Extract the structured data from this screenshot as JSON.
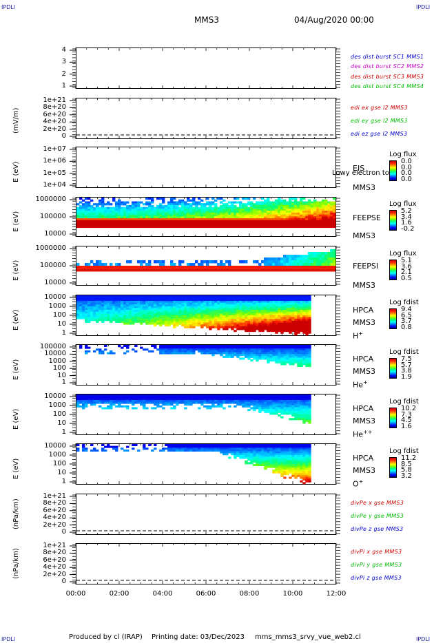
{
  "corners": {
    "label": "IPDLI"
  },
  "header": {
    "spacecraft": "MMS3",
    "datetime": "04/Aug/2020 00:00"
  },
  "footer": {
    "producer": "Produced by cl (IRAP)",
    "printing_date": "Printing date: 03/Dec/2023",
    "filename": "mms_mms3_srvy_vue_web2.cl"
  },
  "chart_data": [
    {
      "type": "line",
      "id": "des-dist",
      "ylabel": "",
      "yticks": [
        "4",
        "3",
        "2",
        "1"
      ],
      "legend": [
        {
          "text": "des dist burst SC1 MMS1",
          "color": "#0000cc"
        },
        {
          "text": "des dist burst SC2 MMS2",
          "color": "#cc00cc"
        },
        {
          "text": "des dist burst SC3 MMS3",
          "color": "#cc0000"
        },
        {
          "text": "des dist burst SC4 MMS4",
          "color": "#00bb00"
        }
      ],
      "series": []
    },
    {
      "type": "line",
      "id": "edi-e",
      "ylabel": "(mV/m)",
      "yticks": [
        "1e+21",
        "8e+20",
        "6e+20",
        "4e+20",
        "2e+20",
        "0"
      ],
      "legend": [
        {
          "text": "edi ex gse l2 MMS3",
          "color": "#cc0000"
        },
        {
          "text": "edi ey gse l2 MMS3",
          "color": "#00bb00"
        },
        {
          "text": "edi ez gse l2 MMS3",
          "color": "#0000cc"
        }
      ],
      "zero_line": true,
      "series": []
    },
    {
      "type": "heatmap",
      "id": "eis",
      "ylabel": "E (eV)",
      "yticks": [
        "1e+07",
        "1e+06",
        "1e+05",
        "1e+04"
      ],
      "labels": [
        "EIS",
        "MMS3"
      ],
      "overlay_text": "Lowy electron to",
      "cb_title": "Log flux",
      "cb_ticks": [
        "0.0",
        "0.0",
        "0.0",
        "0.0"
      ]
    },
    {
      "type": "heatmap",
      "id": "feepse",
      "ylabel": "E (eV)",
      "yticks": [
        "1000000",
        "100000",
        "10000"
      ],
      "labels": [
        "FEEPSE",
        "MMS3"
      ],
      "cb_title": "Log flux",
      "cb_ticks": [
        "5.2",
        "3.4",
        "1.6",
        "-0.2"
      ]
    },
    {
      "type": "heatmap",
      "id": "feepsi",
      "ylabel": "E (eV)",
      "yticks": [
        "1000000",
        "100000",
        "10000"
      ],
      "labels": [
        "FEEPSI",
        "MMS3"
      ],
      "cb_title": "Log flux",
      "cb_ticks": [
        "5.1",
        "3.6",
        "2.1",
        "0.5"
      ]
    },
    {
      "type": "heatmap",
      "id": "hpca-h",
      "ylabel": "E (eV)",
      "yticks": [
        "10000",
        "1000",
        "100",
        "10",
        "1"
      ],
      "labels": [
        "HPCA",
        "MMS3",
        "H+"
      ],
      "cb_title": "Log fdist",
      "cb_ticks": [
        "9.4",
        "6.5",
        "3.7",
        "0.8"
      ]
    },
    {
      "type": "heatmap",
      "id": "hpca-he",
      "ylabel": "E (eV)",
      "yticks": [
        "100000",
        "10000",
        "1000",
        "100",
        "10",
        "1"
      ],
      "labels": [
        "HPCA",
        "MMS3",
        "He+"
      ],
      "cb_title": "Log fdist",
      "cb_ticks": [
        "7.5",
        "5.7",
        "3.8",
        "1.9"
      ]
    },
    {
      "type": "heatmap",
      "id": "hpca-hepp",
      "ylabel": "E (eV)",
      "yticks": [
        "10000",
        "1000",
        "100",
        "10",
        "1"
      ],
      "labels": [
        "HPCA",
        "MMS3",
        "He++"
      ],
      "cb_title": "Log fdist",
      "cb_ticks": [
        "10.2",
        "7.3",
        "4.5",
        "1.6"
      ]
    },
    {
      "type": "heatmap",
      "id": "hpca-o",
      "ylabel": "E (eV)",
      "yticks": [
        "10000",
        "1000",
        "100",
        "10",
        "1"
      ],
      "labels": [
        "HPCA",
        "MMS3",
        "O+"
      ],
      "cb_title": "Log fdist",
      "cb_ticks": [
        "11.2",
        "8.5",
        "5.8",
        "3.2"
      ]
    },
    {
      "type": "line",
      "id": "divpe",
      "ylabel": "(nPa/km)",
      "yticks": [
        "1e+21",
        "8e+20",
        "6e+20",
        "4e+20",
        "2e+20",
        "0"
      ],
      "legend": [
        {
          "text": "divPe x gse MMS3",
          "color": "#cc0000"
        },
        {
          "text": "divPe y gse MMS3",
          "color": "#00bb00"
        },
        {
          "text": "divPe z gse MMS3",
          "color": "#0000cc"
        }
      ],
      "zero_line": true,
      "series": []
    },
    {
      "type": "line",
      "id": "divpi",
      "ylabel": "(nPa/km)",
      "yticks": [
        "1e+21",
        "8e+20",
        "6e+20",
        "4e+20",
        "2e+20",
        "0"
      ],
      "legend": [
        {
          "text": "divPi x gse MMS3",
          "color": "#cc0000"
        },
        {
          "text": "divPi y gse MMS3",
          "color": "#00bb00"
        },
        {
          "text": "divPi z gse MMS3",
          "color": "#0000cc"
        }
      ],
      "zero_line": true,
      "series": []
    }
  ],
  "xaxis": {
    "ticks": [
      "00:00",
      "02:00",
      "04:00",
      "06:00",
      "08:00",
      "10:00",
      "12:00"
    ]
  }
}
